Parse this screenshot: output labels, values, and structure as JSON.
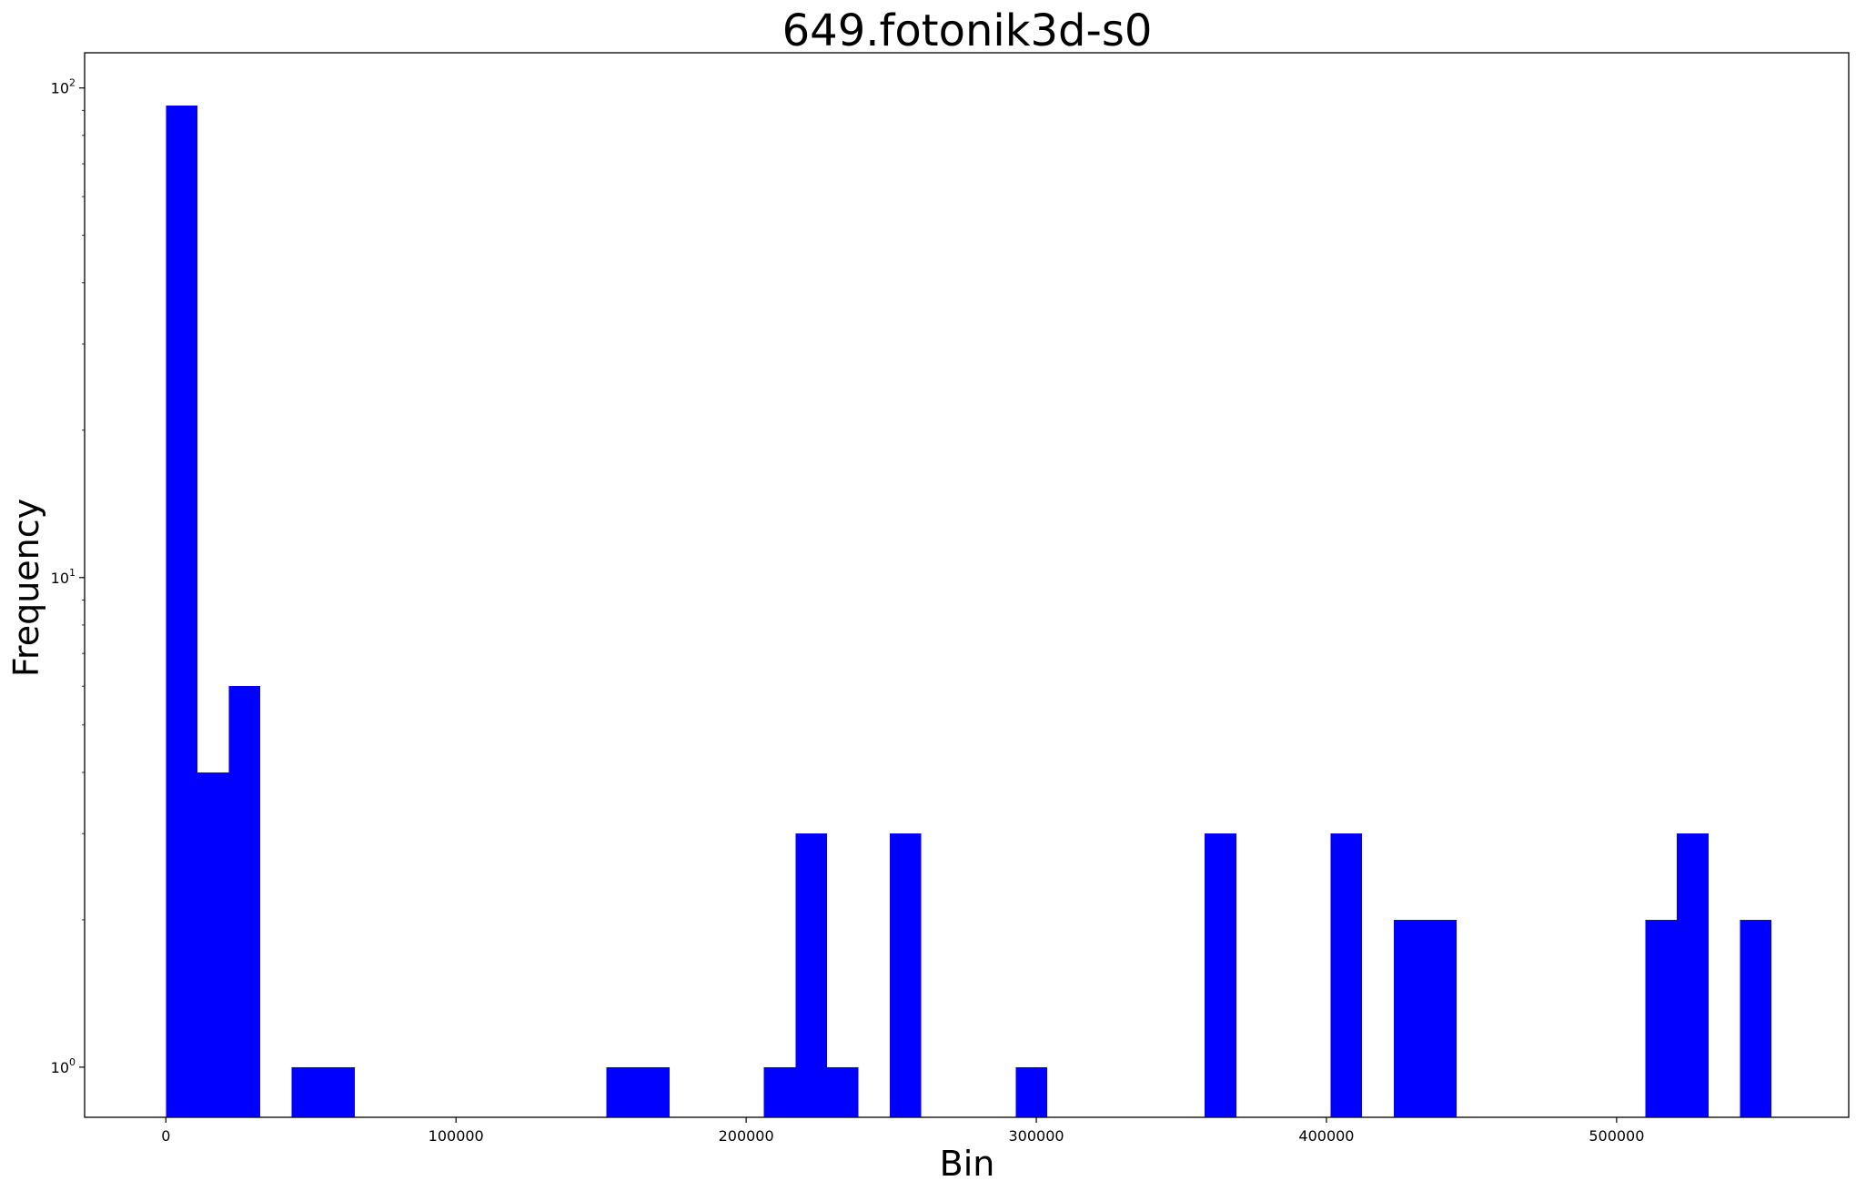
{
  "chart_data": {
    "type": "bar",
    "subtype": "histogram",
    "title": "649.fotonik3d-s0",
    "xlabel": "Bin",
    "ylabel": "Frequency",
    "y_scale": "log",
    "xlim": [
      -28000,
      580000
    ],
    "ylim": [
      0.79,
      118
    ],
    "x_ticks": [
      0,
      100000,
      200000,
      300000,
      400000,
      500000
    ],
    "x_tick_labels": [
      "0",
      "100000",
      "200000",
      "300000",
      "400000",
      "500000"
    ],
    "y_ticks": [
      {
        "base": "10",
        "exp": "0",
        "value": 1
      },
      {
        "base": "10",
        "exp": "1",
        "value": 10
      },
      {
        "base": "10",
        "exp": "2",
        "value": 100
      }
    ],
    "bin_width": 10850,
    "bar_color": "#0000ff",
    "grid": false,
    "bins": [
      {
        "x": 0,
        "value": 92
      },
      {
        "x": 10850,
        "value": 4
      },
      {
        "x": 21700,
        "value": 6
      },
      {
        "x": 43400,
        "value": 1
      },
      {
        "x": 54250,
        "value": 1
      },
      {
        "x": 151900,
        "value": 1
      },
      {
        "x": 162750,
        "value": 1
      },
      {
        "x": 206150,
        "value": 1
      },
      {
        "x": 217000,
        "value": 3
      },
      {
        "x": 227850,
        "value": 1
      },
      {
        "x": 249550,
        "value": 3
      },
      {
        "x": 292950,
        "value": 1
      },
      {
        "x": 358050,
        "value": 3
      },
      {
        "x": 401450,
        "value": 3
      },
      {
        "x": 423150,
        "value": 2
      },
      {
        "x": 434000,
        "value": 2
      },
      {
        "x": 509950,
        "value": 2
      },
      {
        "x": 520800,
        "value": 3
      },
      {
        "x": 542500,
        "value": 2
      }
    ]
  }
}
